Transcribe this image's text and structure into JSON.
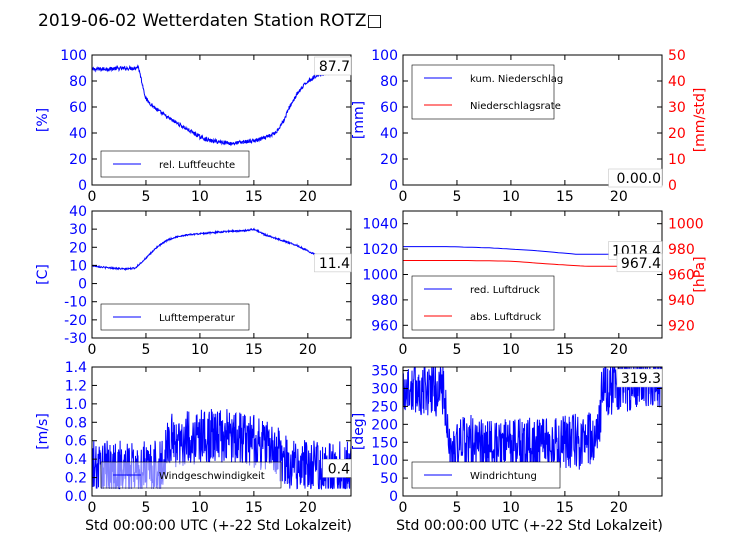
{
  "title": "2019-06-02 Wetterdaten Station ROTZ□",
  "colors": {
    "primary": "#0000ff",
    "secondary": "#ff0000",
    "text": "#000000"
  },
  "xlabel": "Std 00:00:00 UTC (+-22 Std Lokalzeit)",
  "chart_data": [
    {
      "id": "humidity",
      "type": "line",
      "ylabel": "[%]",
      "ylim": [
        0,
        100
      ],
      "yticks": [
        0,
        20,
        40,
        60,
        80,
        100
      ],
      "xlim": [
        0,
        24
      ],
      "xticks": [
        0,
        5,
        10,
        15,
        20
      ],
      "legend": [
        "rel. Luftfeuchte"
      ],
      "legend_position": "bottom-left",
      "last_value_label": "87.7",
      "series": [
        {
          "name": "rel. Luftfeuchte",
          "color": "#0000ff",
          "noise": 1.5,
          "points": [
            [
              0,
              89
            ],
            [
              2,
              89.5
            ],
            [
              4,
              90
            ],
            [
              4.3,
              91
            ],
            [
              4.6,
              80
            ],
            [
              5,
              66
            ],
            [
              6,
              58
            ],
            [
              7,
              52
            ],
            [
              8,
              47
            ],
            [
              9,
              42
            ],
            [
              10,
              37
            ],
            [
              11,
              34
            ],
            [
              12,
              33
            ],
            [
              13,
              32
            ],
            [
              14,
              33
            ],
            [
              15,
              34
            ],
            [
              16,
              36
            ],
            [
              17,
              40
            ],
            [
              17.8,
              50
            ],
            [
              18.3,
              60
            ],
            [
              19,
              70
            ],
            [
              20,
              80
            ],
            [
              21,
              85
            ],
            [
              22,
              87
            ],
            [
              23,
              88
            ],
            [
              24,
              88
            ]
          ]
        }
      ]
    },
    {
      "id": "precip",
      "type": "line",
      "ylabel": "[mm]",
      "ylim": [
        0,
        100
      ],
      "yticks": [
        0,
        20,
        40,
        60,
        80,
        100
      ],
      "y2label": "[mm/std]",
      "y2lim": [
        0,
        50
      ],
      "y2ticks": [
        0,
        10,
        20,
        30,
        40,
        50
      ],
      "xlim": [
        0,
        24
      ],
      "xticks": [
        0,
        5,
        10,
        15,
        20
      ],
      "legend": [
        "kum. Niederschlag",
        "Niederschlagsrate"
      ],
      "legend_position": "top-left",
      "last_value_label": "0.00.0",
      "series": [
        {
          "name": "kum. Niederschlag",
          "color": "#0000ff",
          "noise": 0,
          "points": [
            [
              0,
              0
            ],
            [
              24,
              0
            ]
          ]
        },
        {
          "name": "Niederschlagsrate",
          "color": "#ff0000",
          "noise": 0,
          "axis": "right",
          "points": [
            [
              0,
              0
            ],
            [
              24,
              0
            ]
          ]
        }
      ]
    },
    {
      "id": "temperature",
      "type": "line",
      "ylabel": "[C]",
      "ylim": [
        -30,
        40
      ],
      "yticks": [
        -30,
        -20,
        -10,
        0,
        10,
        20,
        30,
        40
      ],
      "xlim": [
        0,
        24
      ],
      "xticks": [
        0,
        5,
        10,
        15,
        20
      ],
      "legend": [
        "Lufttemperatur"
      ],
      "legend_position": "bottom-left",
      "last_value_label": "11.4",
      "series": [
        {
          "name": "Lufttemperatur",
          "color": "#0000ff",
          "noise": 0.4,
          "points": [
            [
              0,
              10
            ],
            [
              1,
              9
            ],
            [
              2,
              8.5
            ],
            [
              3,
              8
            ],
            [
              4,
              8.5
            ],
            [
              5,
              14
            ],
            [
              6,
              20
            ],
            [
              7,
              24
            ],
            [
              8,
              26
            ],
            [
              9,
              27
            ],
            [
              10,
              27.5
            ],
            [
              11,
              28
            ],
            [
              12,
              28.5
            ],
            [
              13,
              29
            ],
            [
              14,
              29
            ],
            [
              15,
              30
            ],
            [
              16,
              27
            ],
            [
              17,
              25
            ],
            [
              18,
              23
            ],
            [
              19,
              21
            ],
            [
              20,
              18
            ],
            [
              21,
              15
            ],
            [
              22,
              13
            ],
            [
              23,
              12
            ],
            [
              24,
              11.4
            ]
          ]
        }
      ]
    },
    {
      "id": "pressure",
      "type": "line",
      "ylim": [
        950,
        1050
      ],
      "yticks": [
        960,
        980,
        1000,
        1020,
        1040
      ],
      "y2label": "[hPa]",
      "y2lim": [
        910,
        1010
      ],
      "y2ticks": [
        920,
        940,
        960,
        980,
        1000
      ],
      "xlim": [
        0,
        24
      ],
      "xticks": [
        0,
        5,
        10,
        15,
        20
      ],
      "legend": [
        "red. Luftdruck",
        "abs. Luftdruck"
      ],
      "legend_position": "bottom-left",
      "value_labels": [
        "1018.4",
        "967.4"
      ],
      "series": [
        {
          "name": "red. Luftdruck",
          "color": "#0000ff",
          "noise": 0,
          "points": [
            [
              0,
              1022
            ],
            [
              4,
              1022
            ],
            [
              8,
              1021
            ],
            [
              12,
              1019
            ],
            [
              16,
              1016
            ],
            [
              19,
              1016
            ],
            [
              22,
              1017.5
            ],
            [
              24,
              1018.4
            ]
          ]
        },
        {
          "name": "abs. Luftdruck",
          "color": "#ff0000",
          "noise": 0,
          "axis": "right",
          "points": [
            [
              0,
              971
            ],
            [
              6,
              971
            ],
            [
              10,
              970.5
            ],
            [
              14,
              968
            ],
            [
              17,
              966.5
            ],
            [
              20,
              966.5
            ],
            [
              22,
              967
            ],
            [
              24,
              967.4
            ]
          ]
        }
      ]
    },
    {
      "id": "windspeed",
      "type": "line",
      "ylabel": "[m/s]",
      "ylim": [
        0,
        1.4
      ],
      "yticks": [
        0.0,
        0.2,
        0.4,
        0.6,
        0.8,
        1.0,
        1.2,
        1.4
      ],
      "xlim": [
        0,
        24
      ],
      "xticks": [
        0,
        5,
        10,
        15,
        20
      ],
      "legend": [
        "Windgeschwindigkeit"
      ],
      "legend_position": "bottom-left",
      "last_value_label": "0.4",
      "series": [
        {
          "name": "Windgeschwindigkeit",
          "color": "#0000ff",
          "noise": 0.3,
          "points": [
            [
              0,
              0.3
            ],
            [
              3,
              0.3
            ],
            [
              5,
              0.3
            ],
            [
              6.5,
              0.3
            ],
            [
              7,
              0.6
            ],
            [
              8,
              0.6
            ],
            [
              10,
              0.65
            ],
            [
              12,
              0.65
            ],
            [
              14,
              0.65
            ],
            [
              16,
              0.55
            ],
            [
              17,
              0.5
            ],
            [
              18,
              0.35
            ],
            [
              20,
              0.3
            ],
            [
              22,
              0.3
            ],
            [
              24,
              0.3
            ]
          ]
        }
      ]
    },
    {
      "id": "winddir",
      "type": "line",
      "ylabel": "[deg]",
      "ylim": [
        0,
        360
      ],
      "yticks": [
        0,
        50,
        100,
        150,
        200,
        250,
        300,
        350
      ],
      "xlim": [
        0,
        24
      ],
      "xticks": [
        0,
        5,
        10,
        15,
        20
      ],
      "legend": [
        "Windrichtung"
      ],
      "legend_position": "bottom-left",
      "last_value_label": "319.3",
      "series": [
        {
          "name": "Windrichtung",
          "color": "#0000ff",
          "noise": 80,
          "points": [
            [
              0,
              300
            ],
            [
              3.8,
              300
            ],
            [
              4.2,
              120
            ],
            [
              6,
              150
            ],
            [
              8,
              130
            ],
            [
              10,
              140
            ],
            [
              12,
              140
            ],
            [
              14,
              140
            ],
            [
              16,
              150
            ],
            [
              18,
              160
            ],
            [
              18.5,
              300
            ],
            [
              20,
              310
            ],
            [
              22,
              320
            ],
            [
              24,
              315
            ]
          ]
        }
      ]
    }
  ]
}
